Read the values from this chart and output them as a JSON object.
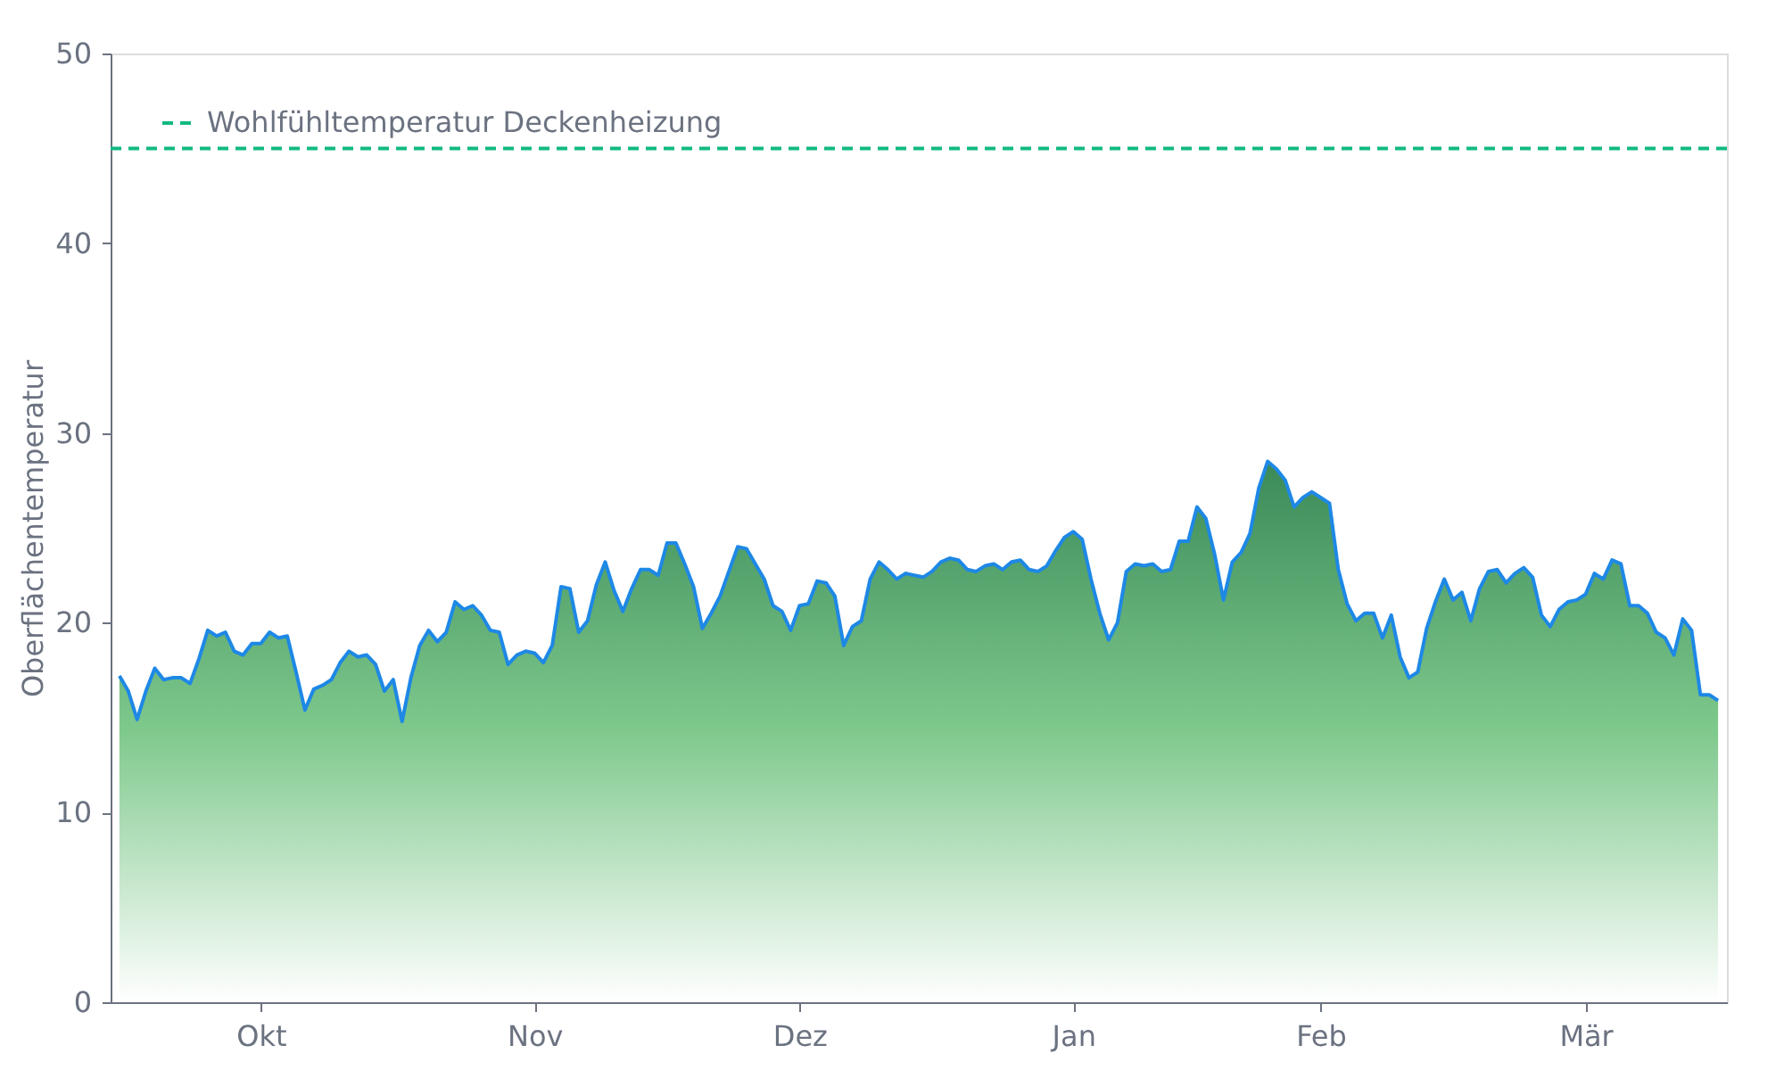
{
  "chart_data": {
    "type": "area",
    "ylabel": "Oberflächentemperatur",
    "categories": [
      null,
      null,
      null,
      null,
      null,
      null,
      null,
      null,
      null,
      null,
      null,
      null,
      null,
      null,
      null,
      null,
      "Okt",
      null,
      null,
      null,
      null,
      null,
      null,
      null,
      null,
      null,
      null,
      null,
      null,
      null,
      null,
      null,
      null,
      null,
      null,
      null,
      null,
      null,
      null,
      null,
      null,
      null,
      null,
      null,
      null,
      null,
      null,
      "Nov",
      null,
      null,
      null,
      null,
      null,
      null,
      null,
      null,
      null,
      null,
      null,
      null,
      null,
      null,
      null,
      null,
      null,
      null,
      null,
      null,
      null,
      null,
      null,
      null,
      null,
      null,
      null,
      null,
      null,
      "Dez",
      null,
      null,
      null,
      null,
      null,
      null,
      null,
      null,
      null,
      null,
      null,
      null,
      null,
      null,
      null,
      null,
      null,
      null,
      null,
      null,
      null,
      null,
      null,
      null,
      null,
      null,
      null,
      null,
      null,
      null,
      "Jan",
      null,
      null,
      null,
      null,
      null,
      null,
      null,
      null,
      null,
      null,
      null,
      null,
      null,
      null,
      null,
      null,
      null,
      null,
      null,
      null,
      null,
      null,
      null,
      null,
      null,
      null,
      null,
      "Feb",
      null,
      null,
      null,
      null,
      null,
      null,
      null,
      null,
      null,
      null,
      null,
      null,
      null,
      null,
      null,
      null,
      null,
      null,
      null,
      null,
      null,
      null,
      null,
      null,
      null,
      null,
      null,
      null,
      null,
      "Mär",
      null,
      null,
      null,
      null,
      null,
      null,
      null,
      null,
      null,
      null,
      null,
      null,
      null,
      null,
      null
    ],
    "series": [
      {
        "color": "#1e88e5",
        "values": [
          17.2,
          16.4,
          14.9,
          16.4,
          17.6,
          17.0,
          17.1,
          17.1,
          16.8,
          18.1,
          19.6,
          19.3,
          19.5,
          18.5,
          18.3,
          18.9,
          18.9,
          19.5,
          19.2,
          19.3,
          17.4,
          15.4,
          16.5,
          16.7,
          17.0,
          17.9,
          18.5,
          18.2,
          18.3,
          17.8,
          16.4,
          17.0,
          14.8,
          17.1,
          18.8,
          19.6,
          19.0,
          19.5,
          21.1,
          20.7,
          20.9,
          20.4,
          19.6,
          19.5,
          17.8,
          18.3,
          18.5,
          18.4,
          17.9,
          18.8,
          21.9,
          21.8,
          19.5,
          20.1,
          22.0,
          23.2,
          21.7,
          20.6,
          21.8,
          22.8,
          22.8,
          22.5,
          24.2,
          24.2,
          23.1,
          21.9,
          19.7,
          20.5,
          21.4,
          22.7,
          24.0,
          23.9,
          23.1,
          22.3,
          20.9,
          20.6,
          19.6,
          20.9,
          21.0,
          22.2,
          22.1,
          21.4,
          18.8,
          19.8,
          20.1,
          22.3,
          23.2,
          22.8,
          22.3,
          22.6,
          22.5,
          22.4,
          22.7,
          23.2,
          23.4,
          23.3,
          22.8,
          22.7,
          23.0,
          23.1,
          22.8,
          23.2,
          23.3,
          22.8,
          22.7,
          23.0,
          23.8,
          24.5,
          24.8,
          24.4,
          22.3,
          20.5,
          19.1,
          20.0,
          22.7,
          23.1,
          23.0,
          23.1,
          22.7,
          22.8,
          24.3,
          24.3,
          26.1,
          25.5,
          23.6,
          21.2,
          23.2,
          23.7,
          24.7,
          27.1,
          28.5,
          28.1,
          27.5,
          26.1,
          26.6,
          26.9,
          26.6,
          26.3,
          22.8,
          21.0,
          20.1,
          20.5,
          20.5,
          19.2,
          20.4,
          18.2,
          17.1,
          17.4,
          19.7,
          21.1,
          22.3,
          21.2,
          21.6,
          20.1,
          21.8,
          22.7,
          22.8,
          22.1,
          22.6,
          22.9,
          22.4,
          20.4,
          19.8,
          20.7,
          21.1,
          21.2,
          21.5,
          22.6,
          22.3,
          23.3,
          23.1,
          20.9,
          20.9,
          20.5,
          19.5,
          19.2,
          18.3,
          20.2,
          19.6,
          16.2,
          16.2,
          15.9
        ]
      }
    ],
    "ylim": [
      0,
      50
    ],
    "yticks": [
      0,
      10,
      20,
      30,
      40,
      50
    ],
    "ref_lines": [
      {
        "axis": "y",
        "value": 45,
        "label": "Wohlfühltemperatur Deckenheizung",
        "color": "#10b981",
        "line_style": "dashed"
      }
    ],
    "legend": "top left",
    "grid": false
  }
}
